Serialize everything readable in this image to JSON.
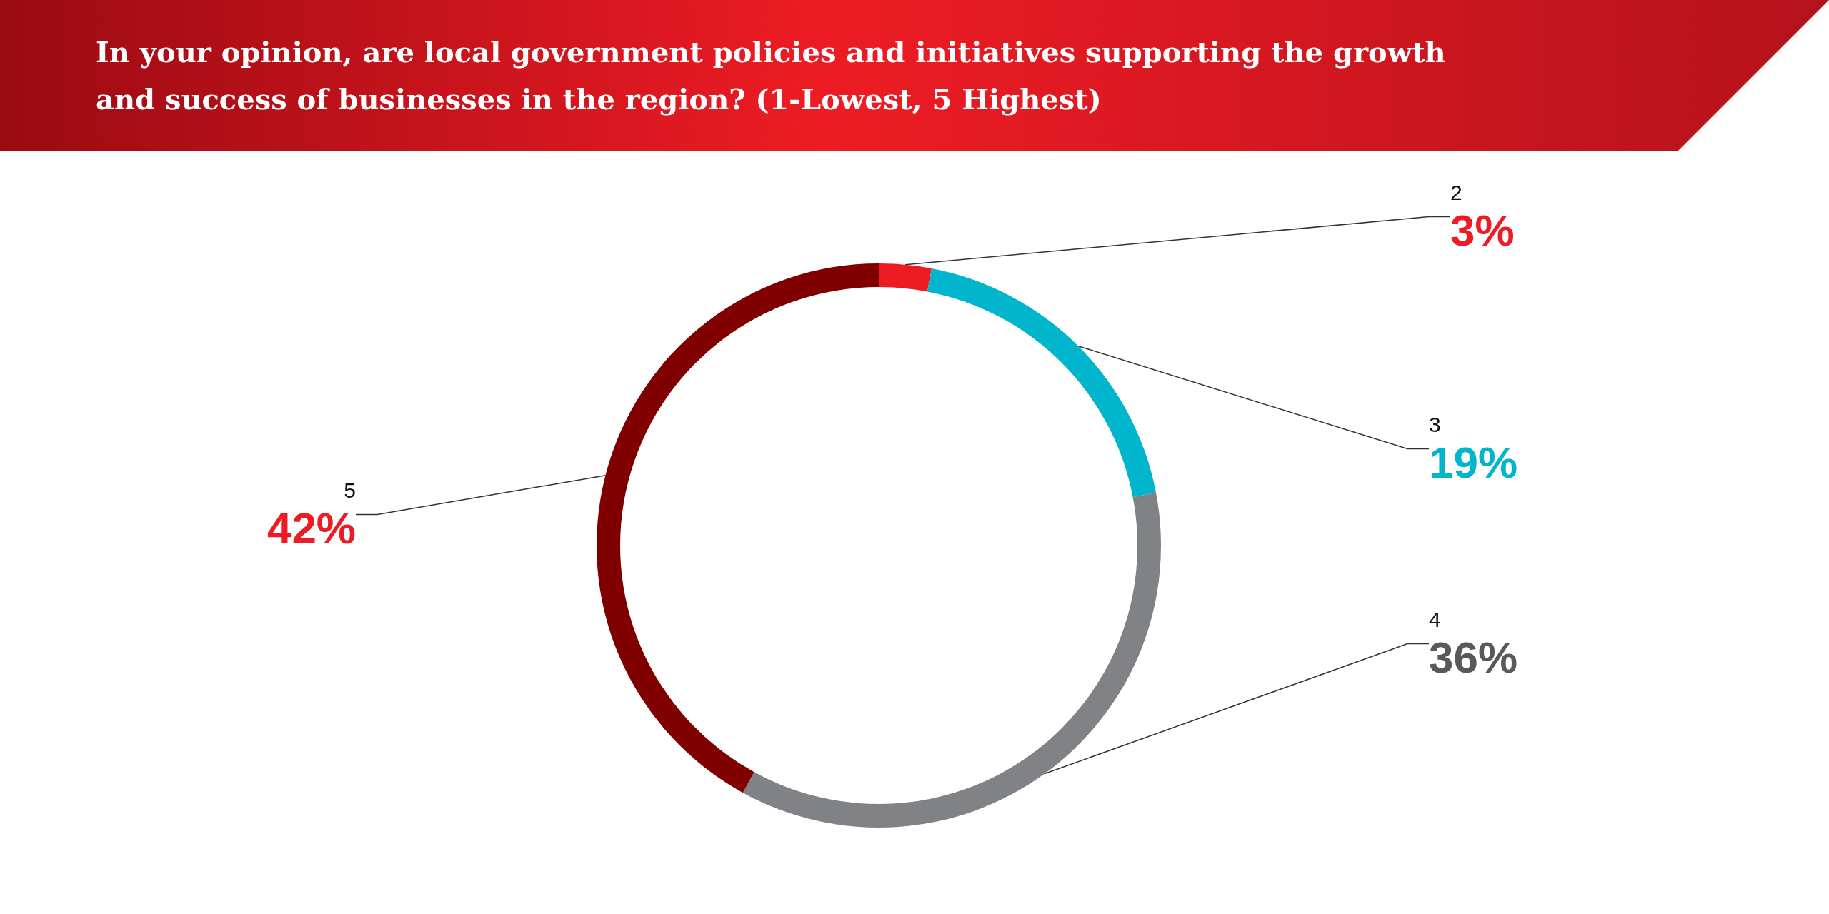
{
  "chart_data": {
    "type": "donut",
    "title": "In your opinion, are local government policies and initiatives supporting the growth and success of businesses in the region? (1-Lowest, 5 Highest)",
    "categories": [
      "2",
      "3",
      "4",
      "5"
    ],
    "values": [
      3,
      19,
      36,
      42
    ],
    "value_labels": [
      "3%",
      "19%",
      "36%",
      "42%"
    ],
    "colors": [
      "#ed1c24",
      "#00b5cc",
      "#808285",
      "#800000"
    ],
    "legend": false
  }
}
